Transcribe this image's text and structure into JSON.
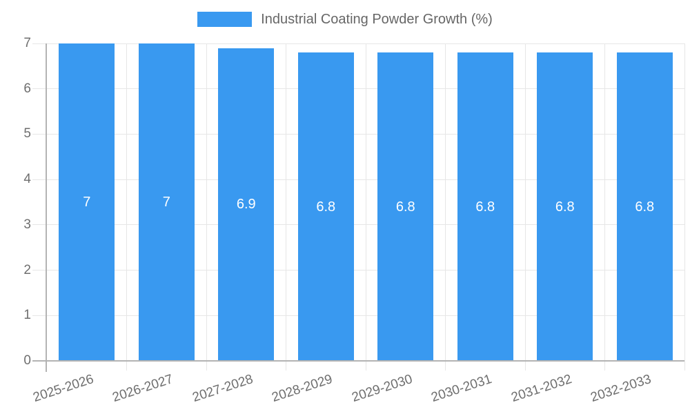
{
  "chart_data": {
    "type": "bar",
    "title": "Industrial Coating Powder Growth (%)",
    "legend": {
      "position": "top",
      "label": "Industrial Coating Powder Growth (%)"
    },
    "categories": [
      "2025-2026",
      "2026-2027",
      "2027-2028",
      "2028-2029",
      "2029-2030",
      "2030-2031",
      "2031-2032",
      "2032-2033"
    ],
    "series": [
      {
        "name": "Industrial Coating Powder Growth (%)",
        "values": [
          7,
          7,
          6.9,
          6.8,
          6.8,
          6.8,
          6.8,
          6.8
        ],
        "display_values": [
          "7",
          "7",
          "6.9",
          "6.8",
          "6.8",
          "6.8",
          "6.8",
          "6.8"
        ]
      }
    ],
    "xlabel": "",
    "ylabel": "",
    "ylim": [
      0,
      7
    ],
    "yticks": [
      0,
      1,
      2,
      3,
      4,
      5,
      6,
      7
    ],
    "grid": true,
    "x_label_rotation_deg": -18,
    "value_labels_position": "center-of-bar",
    "colors": {
      "bar": "#3999F0",
      "legend_text": "#666666",
      "axis_text": "#6e6e6e",
      "grid_line": "#e6e6e6",
      "axis_line": "#b3b3b3",
      "bar_value_text": "#ffffff",
      "background": "#ffffff"
    }
  }
}
